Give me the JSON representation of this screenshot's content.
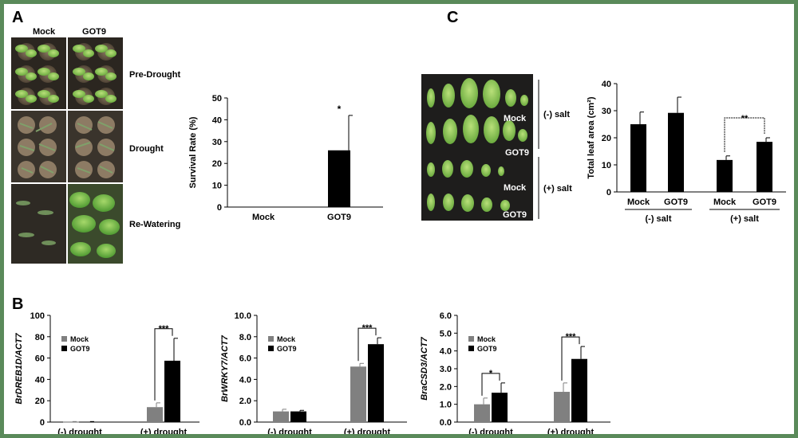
{
  "panel_labels": {
    "a": "A",
    "b": "B",
    "c": "C"
  },
  "panel_a": {
    "col_headers": [
      "Mock",
      "GOT9"
    ],
    "row_labels": [
      "Pre-Drought",
      "Drought",
      "Re-Watering"
    ]
  },
  "panel_c": {
    "photo_labels": {
      "mock": "Mock",
      "got9": "GOT9"
    },
    "group_labels": [
      "(-) salt",
      "(+) salt"
    ]
  },
  "chart_data": [
    {
      "id": "survival",
      "type": "bar",
      "ylabel": "Survival Rate (%)",
      "categories": [
        "Mock",
        "GOT9"
      ],
      "values": [
        0,
        26
      ],
      "errors": [
        0,
        16
      ],
      "ylim": [
        0,
        50
      ],
      "yticks": [
        "0",
        "10",
        "20",
        "30",
        "40",
        "50"
      ],
      "significance": "*",
      "bar_color": "#000000"
    },
    {
      "id": "leaf_area",
      "type": "bar",
      "ylabel": "Total leaf area (cm²)",
      "categories": [
        "Mock",
        "GOT9",
        "Mock",
        "GOT9"
      ],
      "groups": [
        "(-) salt",
        "(+) salt"
      ],
      "values": [
        25,
        29.2,
        11.8,
        18.5
      ],
      "errors": [
        4.5,
        5.8,
        1.5,
        1.5
      ],
      "ylim": [
        0,
        40
      ],
      "yticks": [
        "0",
        "10",
        "20",
        "30",
        "40"
      ],
      "significance": "**",
      "bar_color": "#000000"
    },
    {
      "id": "dreb1d",
      "type": "bar",
      "ylabel": "BrDREB1D/ACT7",
      "categories": [
        "(-) drought",
        "(+) drought"
      ],
      "series": [
        {
          "name": "Mock",
          "values": [
            0.3,
            14
          ],
          "errors": [
            0.2,
            4
          ],
          "color": "#808080"
        },
        {
          "name": "GOT9",
          "values": [
            0.3,
            57.5
          ],
          "errors": [
            0.2,
            21
          ],
          "color": "#000000"
        }
      ],
      "ylim": [
        0,
        100
      ],
      "yticks": [
        "0",
        "20",
        "40",
        "60",
        "80",
        "100"
      ],
      "significance": [
        "",
        "***"
      ],
      "legend": "upper-left"
    },
    {
      "id": "wrky7",
      "type": "bar",
      "ylabel": "BrWRKY7/ACT7",
      "categories": [
        "(-) drought",
        "(+) drought"
      ],
      "series": [
        {
          "name": "Mock",
          "values": [
            1.0,
            5.2
          ],
          "errors": [
            0.2,
            0.3
          ],
          "color": "#808080"
        },
        {
          "name": "GOT9",
          "values": [
            1.0,
            7.3
          ],
          "errors": [
            0.1,
            0.6
          ],
          "color": "#000000"
        }
      ],
      "ylim": [
        0,
        10
      ],
      "yticks": [
        "0.0",
        "2.0",
        "4.0",
        "6.0",
        "8.0",
        "10.0"
      ],
      "significance": [
        "",
        "***"
      ],
      "legend": "upper-left"
    },
    {
      "id": "csd3",
      "type": "bar",
      "ylabel": "BraCSD3/ACT7",
      "categories": [
        "(-) drought",
        "(+) drought"
      ],
      "series": [
        {
          "name": "Mock",
          "values": [
            1.0,
            1.7
          ],
          "errors": [
            0.35,
            0.5
          ],
          "color": "#808080"
        },
        {
          "name": "GOT9",
          "values": [
            1.65,
            3.55
          ],
          "errors": [
            0.55,
            0.7
          ],
          "color": "#000000"
        }
      ],
      "ylim": [
        0,
        6
      ],
      "yticks": [
        "0.0",
        "1.0",
        "2.0",
        "3.0",
        "4.0",
        "5.0",
        "6.0"
      ],
      "significance": [
        "*",
        "***"
      ],
      "legend": "upper-left"
    }
  ]
}
